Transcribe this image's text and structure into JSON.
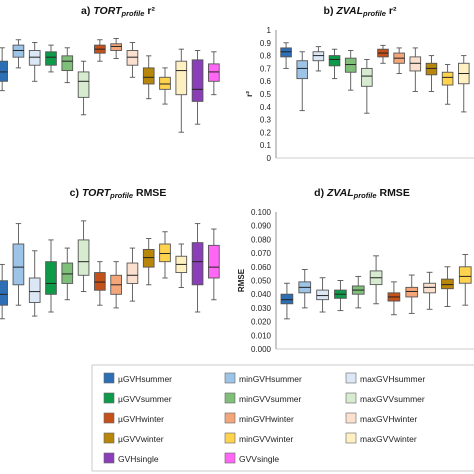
{
  "chart_data": [
    {
      "type": "box",
      "title": "a) TORTprofile r²",
      "title_parts": [
        "a) ",
        "TORT",
        "profile",
        " r²"
      ],
      "visible_series": [
        "µGVHsummer",
        "minGVHsummer",
        "maxGVHsummer",
        "µGVVsummer",
        "minGVVsummer",
        "maxGVVsummer",
        "µGVHwinter",
        "minGVHwinter",
        "maxGVHwinter",
        "µGVVwinter",
        "minGVVwinter",
        "maxGVVwinter",
        "GVHsingle",
        "GVVsingle"
      ],
      "boxes": [
        {
          "q1": 0.55,
          "median": 0.62,
          "q3": 0.7,
          "whislo": 0.48,
          "whishi": 0.8
        },
        {
          "q1": 0.73,
          "median": 0.78,
          "q3": 0.82,
          "whislo": 0.65,
          "whishi": 0.86
        },
        {
          "q1": 0.67,
          "median": 0.73,
          "q3": 0.78,
          "whislo": 0.55,
          "whishi": 0.84
        },
        {
          "q1": 0.67,
          "median": 0.73,
          "q3": 0.77,
          "whislo": 0.62,
          "whishi": 0.82
        },
        {
          "q1": 0.63,
          "median": 0.7,
          "q3": 0.74,
          "whislo": 0.54,
          "whishi": 0.8
        },
        {
          "q1": 0.43,
          "median": 0.55,
          "q3": 0.62,
          "whislo": 0.3,
          "whishi": 0.7
        },
        {
          "q1": 0.76,
          "median": 0.79,
          "q3": 0.82,
          "whislo": 0.7,
          "whishi": 0.86
        },
        {
          "q1": 0.78,
          "median": 0.81,
          "q3": 0.83,
          "whislo": 0.72,
          "whishi": 0.87
        },
        {
          "q1": 0.67,
          "median": 0.73,
          "q3": 0.78,
          "whislo": 0.58,
          "whishi": 0.84
        },
        {
          "q1": 0.53,
          "median": 0.58,
          "q3": 0.65,
          "whislo": 0.42,
          "whishi": 0.74
        },
        {
          "q1": 0.49,
          "median": 0.53,
          "q3": 0.58,
          "whislo": 0.38,
          "whishi": 0.65
        },
        {
          "q1": 0.45,
          "median": 0.63,
          "q3": 0.7,
          "whislo": 0.17,
          "whishi": 0.79
        },
        {
          "q1": 0.4,
          "median": 0.49,
          "q3": 0.71,
          "whislo": 0.23,
          "whishi": 0.78
        },
        {
          "q1": 0.55,
          "median": 0.62,
          "q3": 0.68,
          "whislo": 0.45,
          "whishi": 0.77
        }
      ],
      "ylim": [
        0,
        1
      ]
    },
    {
      "type": "box",
      "title": "b) ZVALprofile r²",
      "title_parts": [
        "b) ",
        "ZVAL",
        "profile",
        " r²"
      ],
      "ylabel": "r²",
      "ylim": [
        0,
        1
      ],
      "yticks": [
        "0",
        "0.1",
        "0.2",
        "0.3",
        "0.4",
        "0.5",
        "0.6",
        "0.7",
        "0.8",
        "0.9",
        "1"
      ],
      "visible_series": [
        "µGVHsummer",
        "minGVHsummer",
        "maxGVHsummer",
        "µGVVsummer",
        "minGVVsummer",
        "maxGVVsummer",
        "µGVHwinter",
        "minGVHwinter",
        "maxGVHwinter",
        "µGVVwinter",
        "minGVVwinter",
        "maxGVVwinter",
        "GVHsingle"
      ],
      "boxes": [
        {
          "q1": 0.79,
          "median": 0.83,
          "q3": 0.86,
          "whislo": 0.7,
          "whishi": 0.9
        },
        {
          "q1": 0.62,
          "median": 0.7,
          "q3": 0.76,
          "whislo": 0.37,
          "whishi": 0.83
        },
        {
          "q1": 0.76,
          "median": 0.8,
          "q3": 0.83,
          "whislo": 0.68,
          "whishi": 0.87
        },
        {
          "q1": 0.72,
          "median": 0.77,
          "q3": 0.8,
          "whislo": 0.62,
          "whishi": 0.85
        },
        {
          "q1": 0.67,
          "median": 0.73,
          "q3": 0.78,
          "whislo": 0.53,
          "whishi": 0.84
        },
        {
          "q1": 0.56,
          "median": 0.64,
          "q3": 0.7,
          "whislo": 0.35,
          "whishi": 0.77
        },
        {
          "q1": 0.79,
          "median": 0.82,
          "q3": 0.85,
          "whislo": 0.74,
          "whishi": 0.88
        },
        {
          "q1": 0.74,
          "median": 0.78,
          "q3": 0.82,
          "whislo": 0.66,
          "whishi": 0.86
        },
        {
          "q1": 0.68,
          "median": 0.74,
          "q3": 0.79,
          "whislo": 0.52,
          "whishi": 0.86
        },
        {
          "q1": 0.65,
          "median": 0.7,
          "q3": 0.74,
          "whislo": 0.52,
          "whishi": 0.8
        },
        {
          "q1": 0.57,
          "median": 0.63,
          "q3": 0.67,
          "whislo": 0.42,
          "whishi": 0.73
        },
        {
          "q1": 0.58,
          "median": 0.66,
          "q3": 0.74,
          "whislo": 0.36,
          "whishi": 0.8
        },
        {
          "q1": 0.46,
          "median": 0.5,
          "q3": 0.58,
          "whislo": 0.28,
          "whishi": 0.72
        }
      ]
    },
    {
      "type": "box",
      "title": "c) TORTprofile RMSE",
      "title_parts": [
        "c) ",
        "TORT",
        "profile",
        " RMSE"
      ],
      "ylim": [
        0,
        0.1
      ],
      "visible_series": [
        "µGVHsummer",
        "minGVHsummer",
        "maxGVHsummer",
        "µGVVsummer",
        "minGVVsummer",
        "maxGVVsummer",
        "µGVHwinter",
        "minGVHwinter",
        "maxGVHwinter",
        "µGVVwinter",
        "minGVVwinter",
        "maxGVVwinter",
        "GVHsingle",
        "GVVsingle"
      ],
      "boxes": [
        {
          "q1": 0.03,
          "median": 0.038,
          "q3": 0.048,
          "whislo": 0.02,
          "whishi": 0.06
        },
        {
          "q1": 0.045,
          "median": 0.058,
          "q3": 0.075,
          "whislo": 0.03,
          "whishi": 0.09
        },
        {
          "q1": 0.032,
          "median": 0.04,
          "q3": 0.05,
          "whislo": 0.022,
          "whishi": 0.07
        },
        {
          "q1": 0.038,
          "median": 0.046,
          "q3": 0.062,
          "whislo": 0.025,
          "whishi": 0.078
        },
        {
          "q1": 0.046,
          "median": 0.053,
          "q3": 0.061,
          "whislo": 0.034,
          "whishi": 0.072
        },
        {
          "q1": 0.052,
          "median": 0.062,
          "q3": 0.078,
          "whislo": 0.04,
          "whishi": 0.092
        },
        {
          "q1": 0.041,
          "median": 0.047,
          "q3": 0.054,
          "whislo": 0.03,
          "whishi": 0.062
        },
        {
          "q1": 0.038,
          "median": 0.045,
          "q3": 0.052,
          "whislo": 0.028,
          "whishi": 0.062
        },
        {
          "q1": 0.046,
          "median": 0.052,
          "q3": 0.061,
          "whislo": 0.033,
          "whishi": 0.072
        },
        {
          "q1": 0.058,
          "median": 0.065,
          "q3": 0.071,
          "whislo": 0.045,
          "whishi": 0.079
        },
        {
          "q1": 0.062,
          "median": 0.068,
          "q3": 0.075,
          "whislo": 0.05,
          "whishi": 0.084
        },
        {
          "q1": 0.054,
          "median": 0.06,
          "q3": 0.066,
          "whislo": 0.043,
          "whishi": 0.075
        },
        {
          "q1": 0.045,
          "median": 0.062,
          "q3": 0.076,
          "whislo": 0.025,
          "whishi": 0.09
        },
        {
          "q1": 0.05,
          "median": 0.058,
          "q3": 0.074,
          "whislo": 0.034,
          "whishi": 0.086
        }
      ]
    },
    {
      "type": "box",
      "title": "d) ZVALprofile RMSE",
      "title_parts": [
        "d) ",
        "ZVAL",
        "profile",
        " RMSE"
      ],
      "ylabel": "RMSE",
      "ylim": [
        0,
        0.1
      ],
      "yticks": [
        "0.000",
        "0.010",
        "0.020",
        "0.030",
        "0.040",
        "0.050",
        "0.060",
        "0.070",
        "0.080",
        "0.090",
        "0.100"
      ],
      "visible_series": [
        "µGVHsummer",
        "minGVHsummer",
        "maxGVHsummer",
        "µGVVsummer",
        "minGVVsummer",
        "maxGVVsummer",
        "µGVHwinter",
        "minGVHwinter",
        "maxGVHwinter",
        "µGVVwinter",
        "minGVVwinter",
        "maxGVVwinter"
      ],
      "boxes": [
        {
          "q1": 0.033,
          "median": 0.036,
          "q3": 0.04,
          "whislo": 0.022,
          "whishi": 0.048
        },
        {
          "q1": 0.041,
          "median": 0.045,
          "q3": 0.049,
          "whislo": 0.03,
          "whishi": 0.058
        },
        {
          "q1": 0.036,
          "median": 0.039,
          "q3": 0.043,
          "whislo": 0.027,
          "whishi": 0.052
        },
        {
          "q1": 0.037,
          "median": 0.04,
          "q3": 0.043,
          "whislo": 0.028,
          "whishi": 0.05
        },
        {
          "q1": 0.04,
          "median": 0.043,
          "q3": 0.046,
          "whislo": 0.03,
          "whishi": 0.053
        },
        {
          "q1": 0.047,
          "median": 0.052,
          "q3": 0.057,
          "whislo": 0.033,
          "whishi": 0.068
        },
        {
          "q1": 0.035,
          "median": 0.038,
          "q3": 0.041,
          "whislo": 0.025,
          "whishi": 0.049
        },
        {
          "q1": 0.038,
          "median": 0.042,
          "q3": 0.045,
          "whislo": 0.026,
          "whishi": 0.054
        },
        {
          "q1": 0.041,
          "median": 0.045,
          "q3": 0.048,
          "whislo": 0.029,
          "whishi": 0.056
        },
        {
          "q1": 0.044,
          "median": 0.047,
          "q3": 0.051,
          "whislo": 0.031,
          "whishi": 0.06
        },
        {
          "q1": 0.048,
          "median": 0.053,
          "q3": 0.06,
          "whislo": 0.032,
          "whishi": 0.069
        },
        {
          "q1": 0.044,
          "median": 0.048,
          "q3": 0.053,
          "whislo": 0.03,
          "whishi": 0.063
        }
      ]
    }
  ],
  "legend": {
    "items": [
      {
        "label": "µGVHsummer",
        "color": "#2e6eb5"
      },
      {
        "label": "minGVHsummer",
        "color": "#9dc3e6"
      },
      {
        "label": "maxGVHsummer",
        "color": "#dbe7f5"
      },
      {
        "label": "µGVVsummer",
        "color": "#0e9a48"
      },
      {
        "label": "minGVVsummer",
        "color": "#7fbf7a"
      },
      {
        "label": "maxGVVsummer",
        "color": "#d6ebcf"
      },
      {
        "label": "µGVHwinter",
        "color": "#c5511a"
      },
      {
        "label": "minGVHwinter",
        "color": "#f2a679"
      },
      {
        "label": "maxGVHwinter",
        "color": "#fbe0cf"
      },
      {
        "label": "µGVVwinter",
        "color": "#b8860b"
      },
      {
        "label": "minGVVwinter",
        "color": "#ffd34d"
      },
      {
        "label": "maxGVVwinter",
        "color": "#fff0c2"
      },
      {
        "label": "GVHsingle",
        "color": "#8a3fb8"
      },
      {
        "label": "GVVsingle",
        "color": "#ff66f5"
      }
    ]
  }
}
